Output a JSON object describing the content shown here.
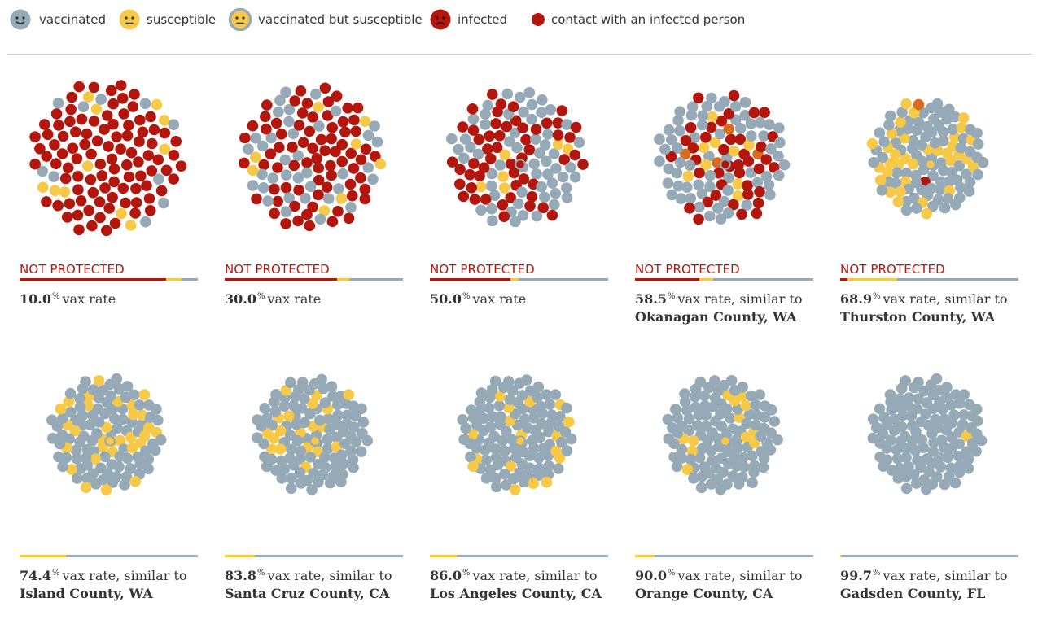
{
  "colors": {
    "vaccinated": "#96a9b6",
    "susceptible": "#f7c948",
    "infected": "#b3160d",
    "mixed": "#d96b20"
  },
  "legend": [
    {
      "key": "vaccinated",
      "label": "vaccinated",
      "icon": "vaccinated-face-icon"
    },
    {
      "key": "susceptible",
      "label": "susceptible",
      "icon": "susceptible-face-icon"
    },
    {
      "key": "vaccinated_susceptible",
      "label": "vaccinated but susceptible",
      "icon": "vaccinated-susceptible-face-icon"
    },
    {
      "key": "infected",
      "label": "infected",
      "icon": "infected-face-icon"
    },
    {
      "key": "contact",
      "label": "contact with an infected person",
      "icon": "contact-dot-icon"
    }
  ],
  "chart_data": [
    {
      "type": "scatter",
      "vax_rate": 10.0,
      "rate_label": "10.0",
      "unit": "%",
      "text": "vax rate",
      "status": "NOT PROTECTED",
      "county": "",
      "bar": {
        "infected": 0.82,
        "susceptible": 0.09
      },
      "dots": {
        "infected": 0.82,
        "susceptible": 0.09,
        "mixed": 0
      }
    },
    {
      "type": "scatter",
      "vax_rate": 30.0,
      "rate_label": "30.0",
      "unit": "%",
      "text": "vax rate",
      "status": "NOT PROTECTED",
      "county": "",
      "bar": {
        "infected": 0.63,
        "susceptible": 0.07
      },
      "dots": {
        "infected": 0.62,
        "susceptible": 0.07,
        "mixed": 0
      }
    },
    {
      "type": "scatter",
      "vax_rate": 50.0,
      "rate_label": "50.0",
      "unit": "%",
      "text": "vax rate",
      "status": "NOT PROTECTED",
      "county": "",
      "bar": {
        "infected": 0.45,
        "susceptible": 0.05
      },
      "dots": {
        "infected": 0.45,
        "susceptible": 0.05,
        "mixed": 0
      }
    },
    {
      "type": "scatter",
      "vax_rate": 58.5,
      "rate_label": "58.5",
      "unit": "%",
      "text": "vax rate, similar to",
      "status": "NOT PROTECTED",
      "county": "Okanagan County, WA",
      "bar": {
        "infected": 0.36,
        "susceptible": 0.08
      },
      "dots": {
        "infected": 0.34,
        "susceptible": 0.08,
        "mixed": 0.03
      }
    },
    {
      "type": "scatter",
      "vax_rate": 68.9,
      "rate_label": "68.9",
      "unit": "%",
      "text": "vax rate, similar to",
      "status": "NOT PROTECTED",
      "county": "Thurston County, WA",
      "bar": {
        "infected": 0.04,
        "susceptible": 0.28
      },
      "dots": {
        "infected": 0.01,
        "susceptible": 0.29,
        "mixed": 0.01
      }
    },
    {
      "type": "scatter",
      "vax_rate": 74.4,
      "rate_label": "74.4",
      "unit": "%",
      "text": "vax rate, similar to",
      "status": "",
      "county": "Island County, WA",
      "bar": {
        "infected": 0,
        "susceptible": 0.26
      },
      "dots": {
        "infected": 0,
        "susceptible": 0.25,
        "mixed": 0
      }
    },
    {
      "type": "scatter",
      "vax_rate": 83.8,
      "rate_label": "83.8",
      "unit": "%",
      "text": "vax rate, similar to",
      "status": "",
      "county": "Santa Cruz County, CA",
      "bar": {
        "infected": 0,
        "susceptible": 0.17
      },
      "dots": {
        "infected": 0,
        "susceptible": 0.16,
        "mixed": 0
      }
    },
    {
      "type": "scatter",
      "vax_rate": 86.0,
      "rate_label": "86.0",
      "unit": "%",
      "text": "vax rate, similar to",
      "status": "",
      "county": "Los Angeles County, CA",
      "bar": {
        "infected": 0,
        "susceptible": 0.15
      },
      "dots": {
        "infected": 0,
        "susceptible": 0.14,
        "mixed": 0
      }
    },
    {
      "type": "scatter",
      "vax_rate": 90.0,
      "rate_label": "90.0",
      "unit": "%",
      "text": "vax rate, similar to",
      "status": "",
      "county": "Orange County, CA",
      "bar": {
        "infected": 0,
        "susceptible": 0.11
      },
      "dots": {
        "infected": 0,
        "susceptible": 0.1,
        "mixed": 0
      }
    },
    {
      "type": "scatter",
      "vax_rate": 99.7,
      "rate_label": "99.7",
      "unit": "%",
      "text": "vax rate, similar to",
      "status": "",
      "county": "Gadsden County, FL",
      "bar": {
        "infected": 0,
        "susceptible": 0.01
      },
      "dots": {
        "infected": 0,
        "susceptible": 0.01,
        "mixed": 0
      }
    }
  ]
}
